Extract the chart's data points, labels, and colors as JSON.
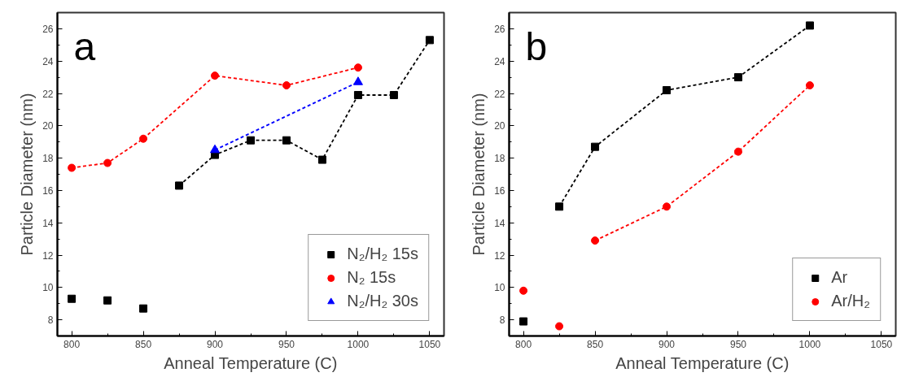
{
  "chart_data": [
    {
      "type": "line",
      "xlabel": "Anneal Temperature (C)",
      "ylabel": "Particle Diameter (nm)",
      "annotations": [
        "a"
      ],
      "xlim": [
        790,
        1060
      ],
      "ylim": [
        7,
        27
      ],
      "xticks": [
        800,
        850,
        900,
        950,
        1000,
        1050
      ],
      "yticks": [
        8,
        10,
        12,
        14,
        16,
        18,
        20,
        22,
        24,
        26
      ],
      "grid": false,
      "legend": "bottom right",
      "line_style": "dashed",
      "series": [
        {
          "type": "scatter",
          "name": "N₂/H₂ 15s",
          "color": "#000000",
          "marker": "square",
          "x": [
            800,
            825,
            850
          ],
          "values": [
            9.3,
            9.2,
            8.7
          ]
        },
        {
          "color": "#000000",
          "marker": "square",
          "x": [
            875,
            900,
            925,
            950,
            975,
            1000,
            1025,
            1050
          ],
          "values": [
            16.3,
            18.2,
            19.1,
            19.1,
            17.9,
            21.9,
            21.9,
            25.3
          ]
        },
        {
          "name": "N₂ 15s",
          "color": "#ff0000",
          "marker": "circle",
          "x": [
            800,
            825,
            850,
            900,
            950,
            1000
          ],
          "values": [
            17.4,
            17.7,
            19.2,
            23.1,
            22.5,
            23.6
          ]
        },
        {
          "name": "N₂/H₂ 30s",
          "color": "#0000ff",
          "marker": "triangle",
          "x": [
            900,
            1000
          ],
          "values": [
            18.5,
            22.7
          ]
        }
      ]
    },
    {
      "type": "line",
      "xlabel": "Anneal Temperature (C)",
      "ylabel": "Particle Diameter (nm)",
      "annotations": [
        "b"
      ],
      "xlim": [
        790,
        1060
      ],
      "ylim": [
        7,
        27
      ],
      "xticks": [
        800,
        850,
        900,
        950,
        1000,
        1050
      ],
      "yticks": [
        8,
        10,
        12,
        14,
        16,
        18,
        20,
        22,
        24,
        26
      ],
      "grid": false,
      "legend": "bottom right",
      "line_style": "dashed",
      "series": [
        {
          "type": "scatter",
          "name": "Ar",
          "color": "#000000",
          "marker": "square",
          "x": [
            800
          ],
          "values": [
            7.9
          ]
        },
        {
          "color": "#000000",
          "marker": "square",
          "x": [
            825,
            850,
            900,
            950,
            1000
          ],
          "values": [
            15.0,
            18.7,
            22.2,
            23.0,
            26.2
          ]
        },
        {
          "type": "scatter",
          "name": "Ar/H₂",
          "color": "#ff0000",
          "marker": "circle",
          "x": [
            800,
            825
          ],
          "values": [
            9.8,
            7.6
          ]
        },
        {
          "color": "#ff0000",
          "marker": "circle",
          "x": [
            850,
            900,
            950,
            1000
          ],
          "values": [
            12.9,
            15.0,
            18.4,
            22.5
          ]
        }
      ]
    }
  ]
}
